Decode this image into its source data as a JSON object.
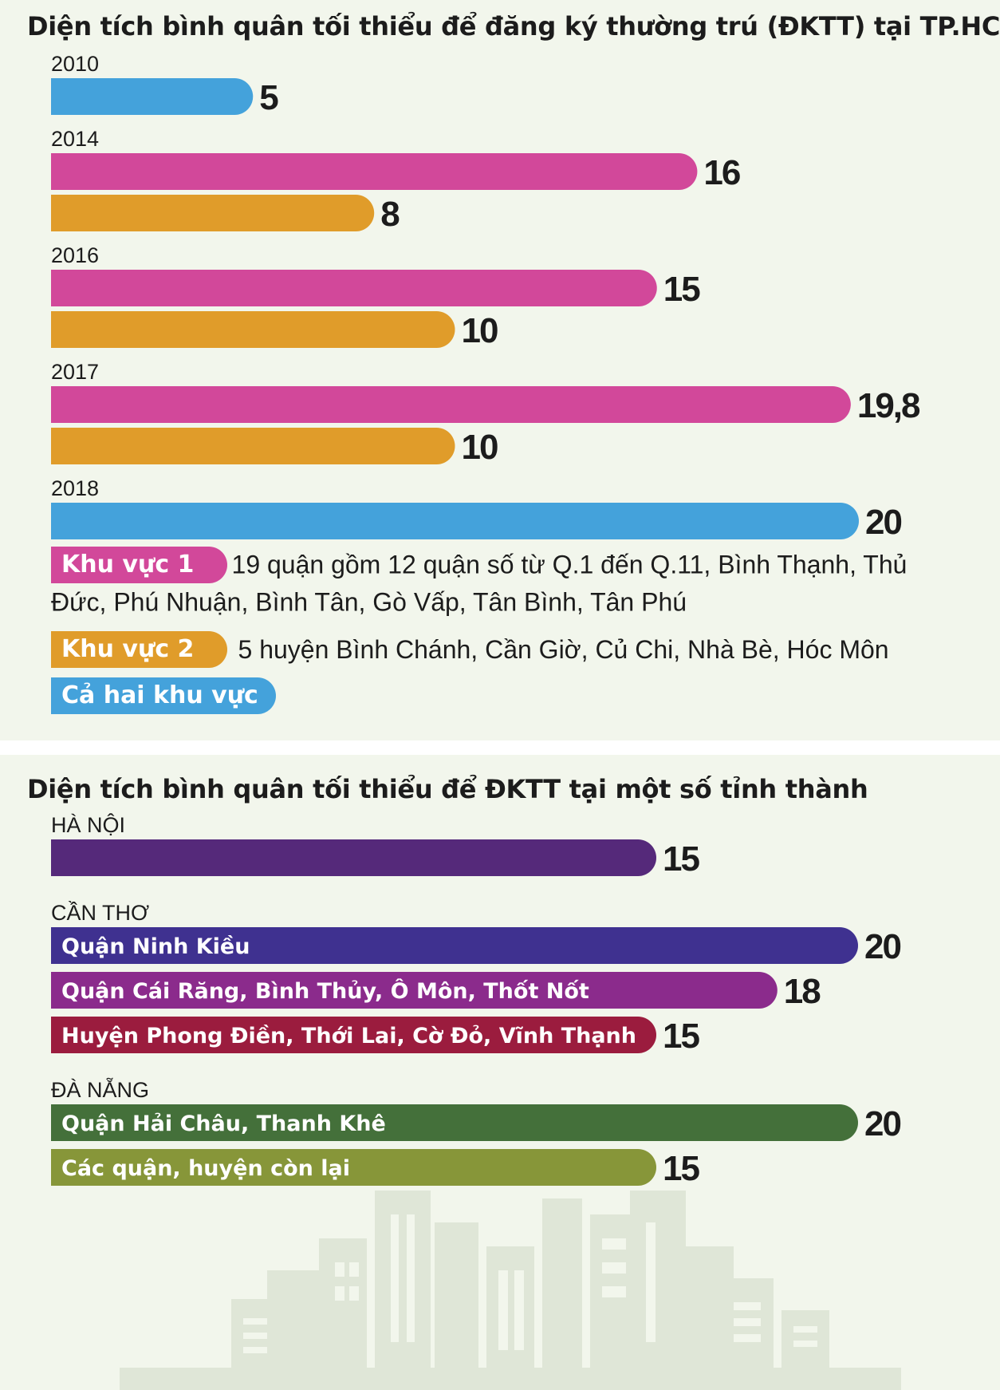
{
  "colors": {
    "khu_vuc_1": "#d2489a",
    "khu_vuc_2": "#e09c2a",
    "ca_hai": "#44a2db",
    "ha_noi": "#55297a",
    "ninh_kieu": "#3f3190",
    "cai_rang": "#8b2b8c",
    "phong_dien": "#9b1c3e",
    "hai_chau": "#44703a",
    "con_lai": "#879639"
  },
  "chart_data": [
    {
      "type": "bar",
      "orientation": "horizontal",
      "title": "Diện tích bình quân tối thiểu để đăng ký thường trú (ĐKTT) tại TP.HCM",
      "xlim": [
        0,
        20
      ],
      "groups": [
        {
          "label": "2010",
          "bars": [
            {
              "series": "Cả hai khu vực",
              "value": 5,
              "value_label": "5",
              "color": "#44a2db"
            }
          ]
        },
        {
          "label": "2014",
          "bars": [
            {
              "series": "Khu vực 1",
              "value": 16,
              "value_label": "16",
              "color": "#d2489a"
            },
            {
              "series": "Khu vực 2",
              "value": 8,
              "value_label": "8",
              "color": "#e09c2a"
            }
          ]
        },
        {
          "label": "2016",
          "bars": [
            {
              "series": "Khu vực 1",
              "value": 15,
              "value_label": "15",
              "color": "#d2489a"
            },
            {
              "series": "Khu vực 2",
              "value": 10,
              "value_label": "10",
              "color": "#e09c2a"
            }
          ]
        },
        {
          "label": "2017",
          "bars": [
            {
              "series": "Khu vực 1",
              "value": 19.8,
              "value_label": "19,8",
              "color": "#d2489a"
            },
            {
              "series": "Khu vực 2",
              "value": 10,
              "value_label": "10",
              "color": "#e09c2a"
            }
          ]
        },
        {
          "label": "2018",
          "bars": [
            {
              "series": "Cả hai khu vực",
              "value": 20,
              "value_label": "20",
              "color": "#44a2db"
            }
          ]
        }
      ],
      "legend": [
        {
          "name": "Khu vực 1",
          "description": "19 quận gồm 12 quận số từ Q.1 đến Q.11, Bình Thạnh, Thủ Đức, Phú Nhuận, Bình Tân, Gò Vấp, Tân Bình, Tân Phú",
          "color": "#d2489a"
        },
        {
          "name": "Khu vực 2",
          "description": "5 huyện Bình Chánh, Cần Giờ, Củ Chi, Nhà Bè, Hóc Môn",
          "color": "#e09c2a"
        },
        {
          "name": "Cả hai khu vực",
          "description": "",
          "color": "#44a2db"
        }
      ]
    },
    {
      "type": "bar",
      "orientation": "horizontal",
      "title": "Diện tích bình quân tối thiểu để ĐKTT tại một số tỉnh thành",
      "xlim": [
        0,
        20
      ],
      "groups": [
        {
          "label": "HÀ NỘI",
          "bars": [
            {
              "label": "",
              "value": 15,
              "value_label": "15",
              "color": "#55297a"
            }
          ]
        },
        {
          "label": "CẦN THƠ",
          "bars": [
            {
              "label": "Quận Ninh Kiều",
              "value": 20,
              "value_label": "20",
              "color": "#3f3190"
            },
            {
              "label": "Quận Cái Răng, Bình Thủy, Ô Môn, Thốt Nốt",
              "value": 18,
              "value_label": "18",
              "color": "#8b2b8c"
            },
            {
              "label": "Huyện Phong Điền, Thới Lai, Cờ Đỏ, Vĩnh Thạnh",
              "value": 15,
              "value_label": "15",
              "color": "#9b1c3e"
            }
          ]
        },
        {
          "label": "ĐÀ NẴNG",
          "bars": [
            {
              "label": "Quận Hải Châu, Thanh Khê",
              "value": 20,
              "value_label": "20",
              "color": "#44703a"
            },
            {
              "label": "Các quận, huyện còn lại",
              "value": 15,
              "value_label": "15",
              "color": "#879639"
            }
          ]
        }
      ]
    }
  ]
}
